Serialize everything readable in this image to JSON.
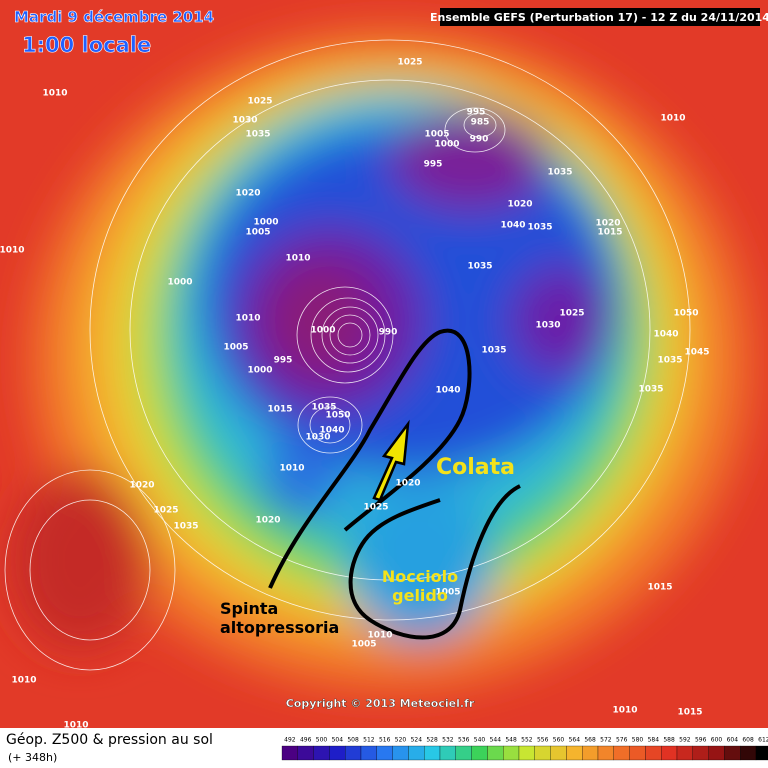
{
  "header": {
    "date": "Mardi 9 décembre 2014",
    "time": "1:00 locale",
    "model": "Ensemble GEFS (Perturbation 17)  -  12 Z du 24/11/2014"
  },
  "map": {
    "isobar_labels": [
      "1010",
      "1025",
      "1025",
      "1030",
      "1035",
      "1010",
      "1020",
      "1000",
      "1005",
      "1000",
      "1010",
      "1010",
      "1005",
      "1000",
      "995",
      "1000",
      "990",
      "1015",
      "1035",
      "1050",
      "1040",
      "1030",
      "1010",
      "1020",
      "1020",
      "1025",
      "1035",
      "995",
      "985",
      "990",
      "1005",
      "1000",
      "995",
      "1035",
      "1020",
      "1040",
      "1035",
      "1035",
      "1020",
      "1015",
      "1025",
      "1030",
      "1035",
      "1040",
      "1025",
      "1020",
      "1050",
      "1040",
      "1035",
      "1045",
      "1035",
      "1010",
      "1015",
      "1010",
      "1010",
      "1010",
      "1015",
      "1005",
      "1010",
      "1005"
    ],
    "annotations": {
      "flow": "Colata",
      "core": "Nocciolo\ngelido",
      "push": "Spinta\naltopressoria"
    },
    "copyright": "Copyright © 2013 Meteociel.fr"
  },
  "footer": {
    "field": "Géop. Z500 & pression au sol",
    "lead": "(+ 348h)",
    "scale": [
      492,
      496,
      500,
      504,
      508,
      512,
      516,
      520,
      524,
      528,
      532,
      536,
      540,
      544,
      548,
      552,
      556,
      560,
      564,
      568,
      572,
      576,
      580,
      584,
      588,
      592,
      596,
      600,
      604,
      608,
      612
    ]
  }
}
